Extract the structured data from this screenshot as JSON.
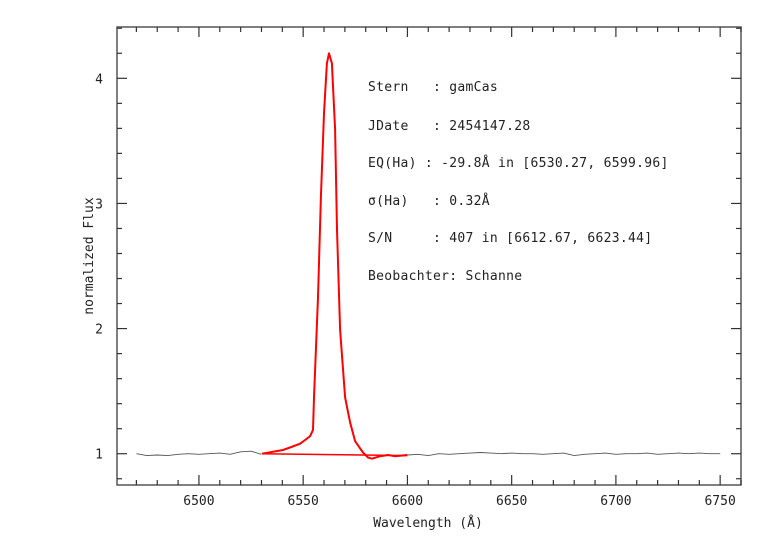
{
  "chart_data": {
    "type": "line",
    "title": "",
    "xlabel": "Wavelength (Å)",
    "ylabel": "normalized Flux",
    "xlim": [
      6460.7,
      6760
    ],
    "ylim": [
      0.75,
      4.41
    ],
    "xticks": [
      6500,
      6550,
      6600,
      6650,
      6700,
      6750
    ],
    "xtick_labels": [
      "6500",
      "6550",
      "6600",
      "6650",
      "6700",
      "6750"
    ],
    "x_minor_step": 10,
    "yticks": [
      1,
      2,
      3,
      4
    ],
    "ytick_labels": [
      "1",
      "2",
      "3",
      "4"
    ],
    "y_minor_step": 0.2,
    "grid": false,
    "colors": {
      "spectrum": "#555555",
      "emission": "#ff0000",
      "axes": "#555555"
    },
    "series": [
      {
        "color": "#555555",
        "segments": [
          {
            "x_start": 6470,
            "x_step": 5,
            "y": [
              1.0,
              0.985,
              0.99,
              0.985,
              0.995,
              1.0,
              0.995,
              1.0,
              1.005,
              0.995,
              1.015,
              1.02,
              0.995
            ]
          },
          {
            "x_start": 6600,
            "x_step": 5,
            "y": [
              0.99,
              0.995,
              0.985,
              1.0,
              0.995,
              1.0,
              1.005,
              1.01,
              1.005,
              1.0,
              1.005,
              1.0,
              1.0,
              0.995,
              1.0,
              1.005,
              0.985,
              0.995,
              1.0,
              1.005,
              0.995,
              1.0,
              1.0,
              1.005,
              0.995,
              1.0,
              1.005,
              1.0,
              1.005,
              1.0,
              1.0
            ]
          }
        ]
      },
      {
        "color": "#ff0000",
        "x": [
          6530.2,
          6540.3,
          6543.7,
          6548.5,
          6550.9,
          6553.3,
          6554.7,
          6555.2,
          6557.1,
          6558.5,
          6560.0,
          6561.4,
          6562.4,
          6563.8,
          6565.3,
          6566.2,
          6567.7,
          6570.1,
          6572.5,
          6574.9,
          6578.7,
          6581.1,
          6583.0,
          6586.9,
          6590.7,
          6594.0,
          6599.96
        ],
        "y": [
          1.0,
          1.03,
          1.05,
          1.08,
          1.11,
          1.14,
          1.19,
          1.45,
          2.25,
          3.05,
          3.72,
          4.12,
          4.2,
          4.12,
          3.59,
          2.79,
          1.99,
          1.45,
          1.25,
          1.1,
          1.01,
          0.97,
          0.96,
          0.98,
          0.99,
          0.98,
          0.99
        ]
      },
      {
        "color": "#ff0000",
        "x": [
          6530.27,
          6599.96
        ],
        "y": [
          1.0,
          0.985
        ]
      }
    ],
    "annotations": [
      "Stern   : gamCas",
      "JDate   : 2454147.28",
      "EQ(Ha) : -29.8Å in [6530.27, 6599.96]",
      "σ(Ha)   : 0.32Å",
      "S/N     : 407 in [6612.67, 6623.44]",
      "Beobachter: Schanne"
    ]
  }
}
